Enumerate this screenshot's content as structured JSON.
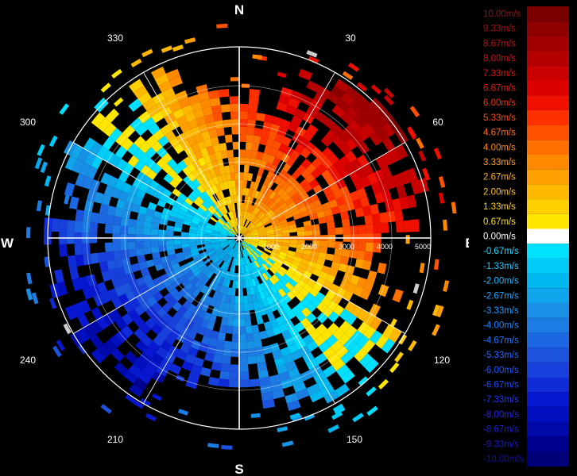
{
  "chart_data": {
    "type": "polar-ppi",
    "quantity": "radial velocity",
    "unit": "m/s",
    "cardinals": [
      "N",
      "E",
      "S",
      "W"
    ],
    "bearing_labels": [
      "30",
      "60",
      "120",
      "150",
      "210",
      "240",
      "300",
      "330"
    ],
    "range_labels": [
      "1000",
      "2000",
      "3000",
      "4000",
      "5000"
    ],
    "range_max": 5000,
    "velocity_range": [
      -10,
      10
    ],
    "colorbar": {
      "labels": [
        "10.00m/s",
        "9.33m/s",
        "8.67m/s",
        "8.00m/s",
        "7.33m/s",
        "6.67m/s",
        "6.00m/s",
        "5.33m/s",
        "4.67m/s",
        "4.00m/s",
        "3.33m/s",
        "2.67m/s",
        "2.00m/s",
        "1.33m/s",
        "0.67m/s",
        "0.00m/s",
        "-0.67m/s",
        "-1.33m/s",
        "-2.00m/s",
        "-2.67m/s",
        "-3.33m/s",
        "-4.00m/s",
        "-4.67m/s",
        "-5.33m/s",
        "-6.00m/s",
        "-6.67m/s",
        "-7.33m/s",
        "-8.00m/s",
        "-8.67m/s",
        "-9.33m/s",
        "-10.00m/s"
      ],
      "colors": [
        "#7a0000",
        "#8c0000",
        "#a00000",
        "#b40000",
        "#c80000",
        "#dc0000",
        "#f01000",
        "#ff3000",
        "#ff5000",
        "#ff7000",
        "#ff8a00",
        "#ffa000",
        "#ffb800",
        "#ffcf00",
        "#ffe600",
        "#ffffff",
        "#00e0ff",
        "#00ccf8",
        "#00b8f0",
        "#10a4ea",
        "#1890e6",
        "#1c7ce4",
        "#1c68e2",
        "#1c54e0",
        "#1840dc",
        "#102cd8",
        "#0818d0",
        "#0010c0",
        "#0008a8",
        "#000090",
        "#000078"
      ],
      "label_colors": [
        "#9a1010",
        "#a81010",
        "#b81010",
        "#c81010",
        "#d81010",
        "#e81a10",
        "#f03010",
        "#ff4a10",
        "#ff6a10",
        "#ff8a10",
        "#ffa020",
        "#ffb020",
        "#ffc020",
        "#ffd020",
        "#ffe020",
        "#ffffff",
        "#20d8ff",
        "#20c8ff",
        "#20b8ff",
        "#20a8ff",
        "#2098ff",
        "#2088ff",
        "#2078ff",
        "#2068ff",
        "#2058ff",
        "#2048ff",
        "#2038f0",
        "#2028e0",
        "#2020d0",
        "#1818c0",
        "#1010b0"
      ]
    }
  }
}
